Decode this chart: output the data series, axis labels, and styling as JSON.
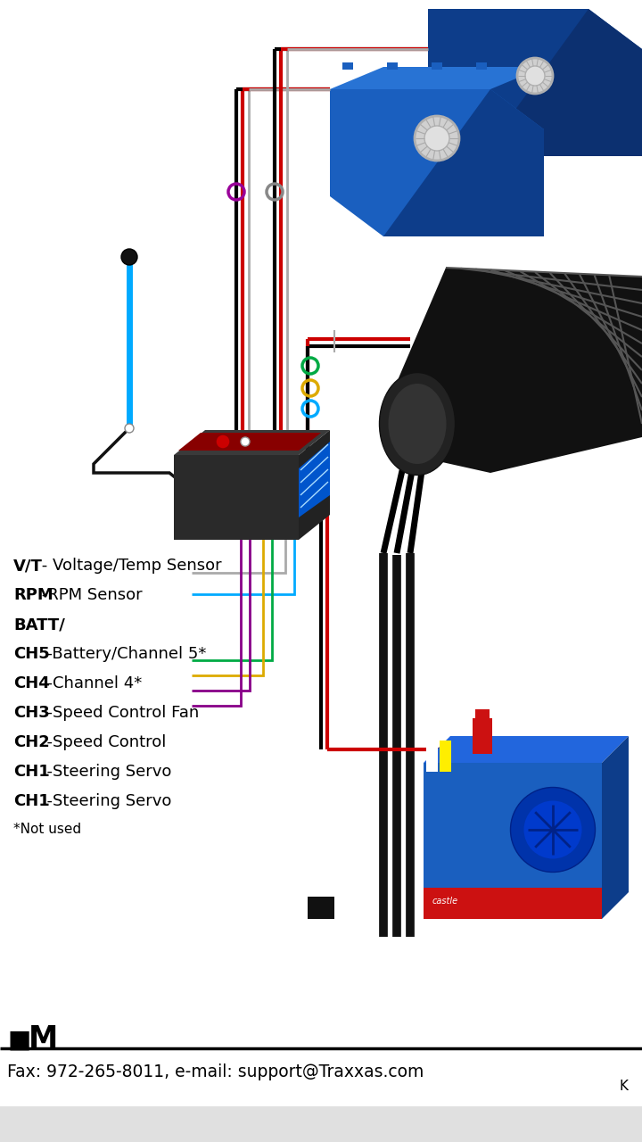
{
  "bg_color": "#ffffff",
  "legend_items": [
    {
      "label": "V/T",
      "desc": " - Voltage/Temp Sensor",
      "line_color": "#999999"
    },
    {
      "label": "RPM",
      "desc": " -RPM Sensor",
      "line_color": "#00aaff"
    },
    {
      "label": "BATT/",
      "desc": "",
      "line_color": null
    },
    {
      "label": "CH5",
      "desc": "  -Battery/Channel 5*",
      "line_color": null
    },
    {
      "label": "CH4",
      "desc": "  -Channel 4*",
      "line_color": null
    },
    {
      "label": "CH3",
      "desc": "  -Speed Control Fan",
      "line_color": "#00aa44"
    },
    {
      "label": "CH2",
      "desc": "  -Speed Control",
      "line_color": "#ddaa00"
    },
    {
      "label": "CH1",
      "desc": "  -Steering Servo",
      "line_color": "#880088"
    },
    {
      "label": "CH1",
      "desc": "  -Steering Servo",
      "line_color": "#880088"
    },
    {
      "label": "*Not used",
      "desc": "",
      "line_color": null
    }
  ],
  "footer_line1_bold": "■ M",
  "footer_line2": "Fax: 972-265-8011, e-mail: support@Traxxas.com",
  "footer_char": "K",
  "servo_color_main": "#1a5fbf",
  "servo_color_dark": "#0d3d8a",
  "servo_color_light": "#2873d4",
  "servo_gear_color": "#d0d0d0",
  "motor_body_color": "#1a1a1a",
  "motor_stripe_color": "#ffffff",
  "esc_blue": "#1a5fbf",
  "esc_red": "#cc1111",
  "recv_dark": "#2a2a2a",
  "recv_medium": "#383838",
  "recv_red": "#cc0000",
  "recv_blue_conn": "#0055cc",
  "wire_black": "#000000",
  "wire_red": "#cc0000",
  "wire_gray": "#aaaaaa",
  "wire_cyan": "#00aaff",
  "wire_green": "#00aa44",
  "wire_yellow": "#ddaa00",
  "wire_purple": "#880088",
  "antenna_blue": "#00aaff",
  "connector_purple": "#990099",
  "connector_gray": "#888888",
  "connector_green": "#00aa44",
  "connector_yellow": "#ddaa00",
  "connector_cyan": "#00aaff"
}
